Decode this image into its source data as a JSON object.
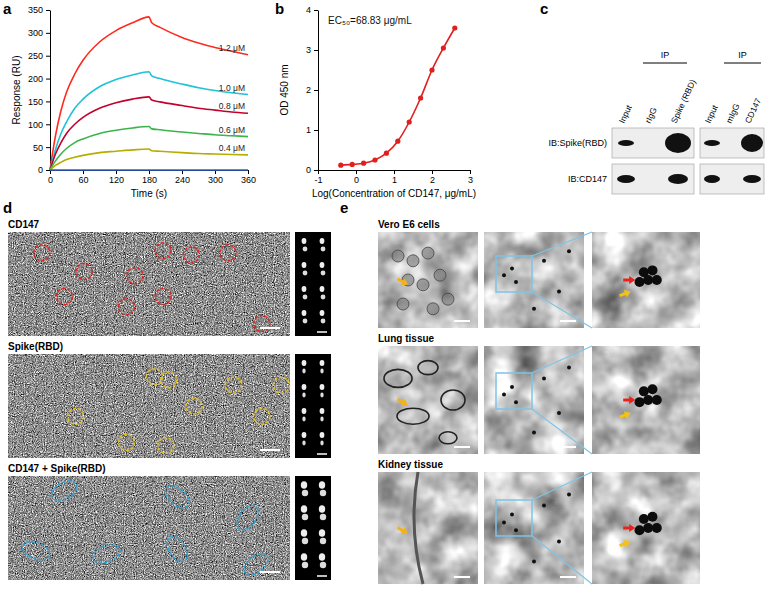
{
  "chart_data": [
    {
      "type": "line",
      "title": "a",
      "x_label": "Time (s)",
      "y_label": "Response (RU)",
      "x": [
        0,
        10,
        20,
        30,
        45,
        60,
        90,
        120,
        150,
        180,
        185,
        200,
        240,
        270,
        300,
        330,
        360
      ],
      "xlim": [
        0,
        360
      ],
      "xticks": [
        0,
        60,
        120,
        180,
        240,
        300,
        360
      ],
      "ylim": [
        0,
        350
      ],
      "yticks": [
        0,
        50,
        100,
        150,
        200,
        250,
        300,
        350
      ],
      "series": [
        {
          "name": "1.2 μM",
          "color": "#ff2a1f",
          "values": [
            0,
            75,
            130,
            170,
            210,
            240,
            280,
            305,
            322,
            335,
            322,
            312,
            290,
            278,
            268,
            260,
            252
          ]
        },
        {
          "name": "1.0 μM",
          "color": "#1ec3d6",
          "values": [
            0,
            45,
            80,
            105,
            135,
            155,
            182,
            198,
            208,
            215,
            206,
            200,
            188,
            180,
            174,
            169,
            165
          ]
        },
        {
          "name": "0.8 μM",
          "color": "#c4002c",
          "values": [
            0,
            35,
            60,
            80,
            100,
            115,
            135,
            147,
            155,
            160,
            153,
            149,
            141,
            135,
            131,
            127,
            124
          ]
        },
        {
          "name": "0.6 μM",
          "color": "#3cb44b",
          "values": [
            0,
            20,
            35,
            47,
            60,
            68,
            80,
            87,
            92,
            95,
            90,
            88,
            83,
            80,
            77,
            75,
            73
          ]
        },
        {
          "name": "0.4 μM",
          "color": "#b5ad00",
          "values": [
            0,
            10,
            17,
            23,
            28,
            32,
            38,
            41,
            44,
            46,
            42,
            41,
            38,
            36,
            35,
            34,
            33
          ]
        },
        {
          "name": null,
          "color": "#3060d0",
          "values": [
            0,
            0,
            0,
            0,
            0,
            0,
            0,
            0,
            0,
            0,
            0,
            0,
            0,
            0,
            0,
            0,
            0
          ]
        }
      ]
    },
    {
      "type": "line",
      "title": "b",
      "x_label": "Log(Concentration of CD147, μg/mL)",
      "y_label": "OD 450 nm",
      "annotations": [
        "EC₅₀=68.83 μg/mL"
      ],
      "x": [
        -0.4,
        -0.1,
        0.2,
        0.5,
        0.8,
        1.1,
        1.4,
        1.7,
        2.0,
        2.3,
        2.6
      ],
      "xlim": [
        -1,
        3
      ],
      "xticks": [
        -1,
        0,
        1,
        2,
        3
      ],
      "ylim": [
        0,
        4
      ],
      "yticks": [
        0,
        1,
        2,
        3,
        4
      ],
      "series": [
        {
          "color": "#e0201e",
          "marker": "circle",
          "values": [
            0.12,
            0.14,
            0.17,
            0.25,
            0.42,
            0.72,
            1.2,
            1.8,
            2.5,
            3.05,
            3.55
          ]
        }
      ]
    }
  ],
  "panel_c": {
    "label": "c",
    "blots": [
      {
        "header": "IP",
        "lanes": [
          "Input",
          "rIgG",
          "Spike (RBD)"
        ]
      },
      {
        "header": "IP",
        "lanes": [
          "Input",
          "mIgG",
          "CD147"
        ]
      }
    ],
    "rows": [
      "IB:Spike(RBD)",
      "IB:CD147"
    ]
  },
  "panel_d": {
    "label": "d",
    "rows": [
      "CD147",
      "Spike(RBD)",
      "CD147 + Spike(RBD)"
    ]
  },
  "panel_e": {
    "label": "e",
    "rows": [
      "Vero E6 cells",
      "Lung tissue",
      "Kidney tissue"
    ]
  }
}
